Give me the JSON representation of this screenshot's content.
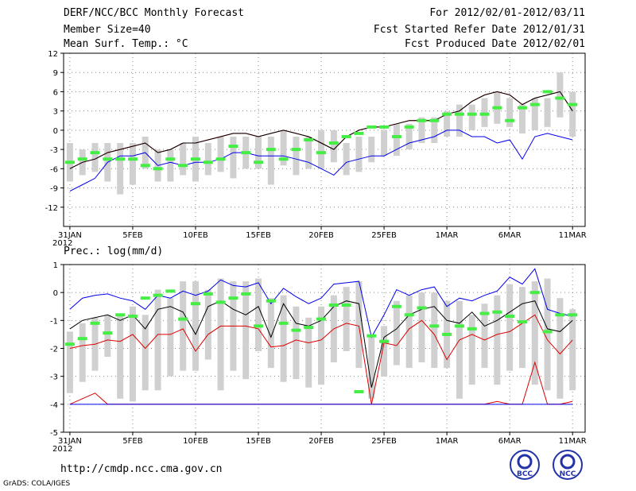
{
  "header": {
    "title": "DERF/NCC/BCC Monthly Forecast",
    "member": "Member Size=40",
    "variable": "Mean Surf. Temp.: °C",
    "for_range": "For 2012/02/01-2012/03/11",
    "started": "Fcst Started Refer Date 2012/01/31",
    "produced": "Fcst Produced Date 2012/02/01"
  },
  "footer": {
    "url": "http://cmdp.ncc.cma.gov.cn",
    "grads": "GrADS: COLA/IGES",
    "logo1": "BCC",
    "logo2": "NCC"
  },
  "colors": {
    "box": "#d0d0d0",
    "median": "#44ee44",
    "blue": "#0000ee",
    "red": "#dd0000",
    "black": "#000000"
  },
  "chart_data": [
    {
      "type": "line",
      "title": "Mean Surf. Temp.: °C",
      "ylim": [
        -15,
        12
      ],
      "yticks": [
        -12,
        -9,
        -6,
        -3,
        0,
        3,
        6,
        9,
        12
      ],
      "x": [
        0,
        1,
        2,
        3,
        4,
        5,
        6,
        7,
        8,
        9,
        10,
        11,
        12,
        13,
        14,
        15,
        16,
        17,
        18,
        19,
        20,
        21,
        22,
        23,
        24,
        25,
        26,
        27,
        28,
        29,
        30,
        31,
        32,
        33,
        34,
        35,
        36,
        37,
        38,
        39,
        40
      ],
      "xticks": [
        0,
        5,
        10,
        15,
        20,
        25,
        30,
        35,
        40
      ],
      "xticklabels": [
        "31JAN",
        "5FEB",
        "10FEB",
        "15FEB",
        "20FEB",
        "25FEB",
        "1MAR",
        "6MAR",
        "11MAR"
      ],
      "xsublabel": "2012",
      "box_low": [
        -8,
        -7,
        -6.5,
        -8,
        -10,
        -8.5,
        -6,
        -8,
        -8,
        -7,
        -8,
        -7,
        -6.5,
        -7.5,
        -6,
        -6,
        -8.5,
        -5.5,
        -7,
        -6,
        -6,
        -5,
        -7,
        -6.5,
        -5,
        -4,
        -4,
        -3,
        -2,
        -2,
        -1,
        -1,
        0,
        0.5,
        1,
        0.5,
        -0.5,
        0,
        0.5,
        2,
        -1
      ],
      "box_high": [
        -2,
        -3,
        -2,
        -2,
        -2,
        -2,
        -1,
        -3,
        -3,
        -2,
        -1,
        -2,
        -1,
        -1,
        -1,
        -1,
        -1,
        0,
        -1,
        -1,
        0,
        0,
        -2,
        -1,
        -1,
        0,
        1,
        1,
        2,
        2,
        3,
        4,
        4,
        5,
        6,
        5,
        4,
        5,
        5,
        9,
        6
      ],
      "median": [
        -5,
        -4.5,
        -3.5,
        -4.5,
        -4.5,
        -4.5,
        -5.5,
        -6,
        -4.5,
        -5.5,
        -4.5,
        -5,
        -4.5,
        -2.5,
        -3.5,
        -5,
        -3,
        -4.5,
        -3,
        -1.5,
        -3.5,
        -2,
        -1,
        -0.5,
        0.5,
        0.5,
        -1,
        0.5,
        1.5,
        1.5,
        2.5,
        2.5,
        2.5,
        2.5,
        3.5,
        1.5,
        3.5,
        4,
        6,
        5,
        4
      ],
      "series": [
        {
          "name": "max",
          "color": "blue",
          "values": [
            -9.5,
            -8.5,
            -7.5,
            -5,
            -4,
            -4,
            -3.5,
            -5.5,
            -5,
            -5.5,
            -5,
            -5,
            -4.5,
            -3.5,
            -3.5,
            -4,
            -4,
            -4,
            -4.5,
            -5,
            -6,
            -7,
            -5,
            -4.5,
            -4,
            -4,
            -3,
            -2,
            -1.5,
            -1,
            0,
            0,
            -1,
            -1,
            -2,
            -1.5,
            -4.5,
            -1,
            -0.5,
            -1,
            -1.5
          ]
        },
        {
          "name": "p90",
          "color": "red",
          "values": [
            -6,
            -5,
            -4.5,
            -3.5,
            -3,
            -2.5,
            -2,
            -3.5,
            -3,
            -2,
            -2,
            -1.5,
            -1,
            -0.5,
            -0.5,
            -1,
            -0.5,
            0,
            -0.5,
            -1,
            -2,
            -3,
            -1,
            0,
            0.5,
            0.5,
            1,
            1.5,
            1.5,
            1.5,
            2.5,
            3,
            4.5,
            5.5,
            6,
            5.5,
            4,
            5,
            5.5,
            6,
            3
          ]
        },
        {
          "name": "mean",
          "color": "black",
          "values": [
            -6,
            -5,
            -4.5,
            -3.5,
            -3,
            -2.5,
            -2,
            -3.5,
            -3,
            -2,
            -2,
            -1.5,
            -1,
            -0.5,
            -0.5,
            -1,
            -0.5,
            0,
            -0.5,
            -1,
            -2,
            -3,
            -1,
            0,
            0.5,
            0.5,
            1,
            1.5,
            1.5,
            1.5,
            2.5,
            3,
            4.5,
            5.5,
            6,
            5.5,
            4,
            5,
            5.5,
            6,
            3
          ]
        }
      ]
    },
    {
      "type": "line",
      "title": "Prec.: log(mm/d)",
      "ylim": [
        -5,
        1
      ],
      "yticks": [
        -5,
        -4,
        -3,
        -2,
        -1,
        0,
        1
      ],
      "x": [
        0,
        1,
        2,
        3,
        4,
        5,
        6,
        7,
        8,
        9,
        10,
        11,
        12,
        13,
        14,
        15,
        16,
        17,
        18,
        19,
        20,
        21,
        22,
        23,
        24,
        25,
        26,
        27,
        28,
        29,
        30,
        31,
        32,
        33,
        34,
        35,
        36,
        37,
        38,
        39,
        40
      ],
      "xticks": [
        0,
        5,
        10,
        15,
        20,
        25,
        30,
        35,
        40
      ],
      "xticklabels": [
        "31JAN",
        "5FEB",
        "10FEB",
        "15FEB",
        "20FEB",
        "25FEB",
        "1MAR",
        "6MAR",
        "11MAR"
      ],
      "xsublabel": "2012",
      "box_low": [
        -3.6,
        -3.2,
        -2.8,
        -2.3,
        -3.8,
        -3.9,
        -3.5,
        -3.5,
        -3,
        -2.8,
        -2.8,
        -2.4,
        -3.5,
        -2.8,
        -3.1,
        -2.1,
        -2.7,
        -3.2,
        -3.1,
        -3.4,
        -3.3,
        -2.5,
        -2.1,
        -2.7,
        -3.8,
        -3,
        -2.6,
        -2.7,
        -2.5,
        -2.7,
        -2.7,
        -3.8,
        -3.3,
        -2.7,
        -3.3,
        -2.8,
        -2.7,
        -3.3,
        -3.5,
        -3.8,
        -3.5
      ],
      "box_high": [
        -1.4,
        -1.1,
        -0.9,
        -0.8,
        -0.8,
        -0.5,
        -0.8,
        0.1,
        -0.2,
        0.4,
        0.4,
        0.1,
        0.5,
        0.4,
        0.4,
        0.5,
        -0.2,
        -0.1,
        -0.5,
        -0.9,
        -0.5,
        -0.1,
        0.2,
        0.4,
        -1.5,
        -1.2,
        -0.3,
        -0.1,
        0,
        0,
        -0.3,
        -0.3,
        -0.8,
        -0.4,
        -0.1,
        0.3,
        0.2,
        0.4,
        0.5,
        -0.2,
        -0.6
      ],
      "median": [
        -1.85,
        -1.65,
        -1.1,
        -1.45,
        -0.8,
        -0.85,
        -0.2,
        -0.1,
        0.05,
        -0.95,
        -0.4,
        -0.05,
        -0.35,
        -0.2,
        -0.05,
        -1.2,
        -0.3,
        -1.1,
        -1.35,
        -1.25,
        -0.95,
        -0.45,
        -0.45,
        -3.55,
        -1.55,
        -1.75,
        -0.5,
        -0.8,
        -0.55,
        -1.2,
        -1.5,
        -1.2,
        -1.3,
        -0.75,
        -0.7,
        -0.85,
        -1.05,
        0,
        -1.4,
        -0.8,
        -0.8
      ],
      "series": [
        {
          "name": "max",
          "color": "blue",
          "values": [
            -0.6,
            -0.2,
            -0.1,
            -0.05,
            -0.2,
            -0.3,
            -0.6,
            -0.1,
            -0.2,
            0.05,
            -0.1,
            0.05,
            0.45,
            0.25,
            0.2,
            0.35,
            -0.4,
            0.15,
            -0.15,
            -0.4,
            -0.2,
            0.3,
            0.35,
            0.4,
            -1.6,
            -0.8,
            0.1,
            -0.1,
            0.1,
            0.2,
            -0.5,
            -0.2,
            -0.3,
            -0.1,
            0.05,
            0.55,
            0.3,
            0.85,
            -0.6,
            -0.75,
            -0.85
          ]
        },
        {
          "name": "p90",
          "color": "red",
          "values": [
            -2.0,
            -1.9,
            -1.85,
            -1.7,
            -1.75,
            -1.5,
            -2,
            -1.5,
            -1.5,
            -1.3,
            -2.1,
            -1.5,
            -1.2,
            -1.2,
            -1.2,
            -1.3,
            -1.95,
            -1.9,
            -1.7,
            -1.8,
            -1.7,
            -1.3,
            -1.1,
            -1.2,
            -4.0,
            -1.8,
            -1.9,
            -1.3,
            -1.0,
            -1.5,
            -2.4,
            -1.7,
            -1.5,
            -1.7,
            -1.5,
            -1.4,
            -1.1,
            -0.8,
            -1.7,
            -2.2,
            -1.7
          ]
        },
        {
          "name": "mean",
          "color": "black",
          "values": [
            -1.3,
            -1.0,
            -0.9,
            -0.8,
            -1.0,
            -0.8,
            -1.3,
            -0.6,
            -0.5,
            -0.7,
            -1.5,
            -0.5,
            -0.3,
            -0.6,
            -0.8,
            -0.5,
            -1.6,
            -0.4,
            -1.1,
            -1.2,
            -1.0,
            -0.5,
            -0.3,
            -0.4,
            -3.4,
            -1.6,
            -1.3,
            -0.8,
            -0.6,
            -0.5,
            -1.0,
            -1.1,
            -0.7,
            -1.2,
            -1.0,
            -0.7,
            -0.4,
            -0.3,
            -1.3,
            -1.4,
            -1.0
          ]
        },
        {
          "name": "min",
          "color": "red",
          "values": [
            -4,
            -3.8,
            -3.6,
            -4,
            -4,
            -4,
            -4,
            -4,
            -4,
            -4,
            -4,
            -4,
            -4,
            -4,
            -4,
            -4,
            -4,
            -4,
            -4,
            -4,
            -4,
            -4,
            -4,
            -4,
            -4,
            -4,
            -4,
            -4,
            -4,
            -4,
            -4,
            -4,
            -4,
            -4,
            -3.9,
            -4,
            -4,
            -2.5,
            -4,
            -4,
            -3.9
          ]
        }
      ]
    }
  ]
}
